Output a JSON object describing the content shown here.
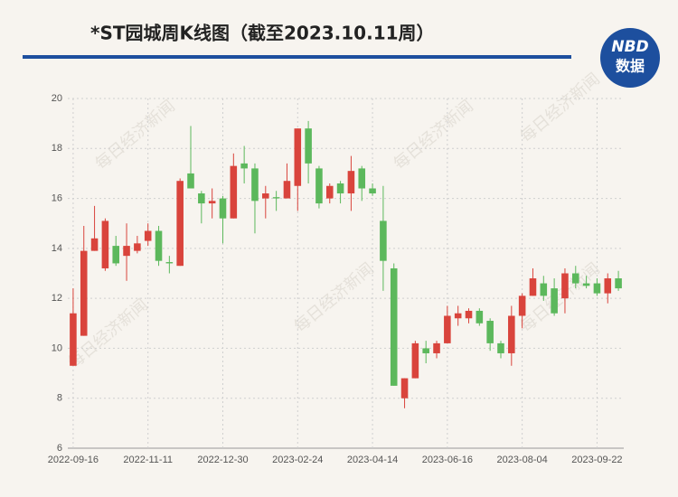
{
  "chart_data": {
    "type": "candlestick",
    "title": "*ST园城周K线图（截至2023.10.11周）",
    "watermark": "每日经济新闻",
    "categories": [
      "2022-09-16",
      null,
      null,
      null,
      null,
      null,
      null,
      "2022-11-11",
      null,
      null,
      null,
      null,
      null,
      null,
      "2022-12-30",
      null,
      null,
      null,
      null,
      null,
      null,
      "2023-02-24",
      null,
      null,
      null,
      null,
      null,
      null,
      "2023-04-14",
      null,
      null,
      null,
      null,
      null,
      null,
      "2023-06-16",
      null,
      null,
      null,
      null,
      null,
      null,
      "2023-08-04",
      null,
      null,
      null,
      null,
      null,
      null,
      "2023-09-22",
      null,
      null
    ],
    "series": {
      "up_color": "#d9443c",
      "down_color": "#5cb85c",
      "open": [
        9.3,
        10.5,
        13.9,
        13.2,
        14.1,
        13.7,
        13.9,
        14.3,
        14.7,
        13.45,
        13.3,
        17.0,
        16.2,
        15.8,
        16.0,
        15.2,
        17.4,
        17.2,
        16.0,
        16.05,
        16.0,
        16.5,
        18.8,
        17.2,
        16.0,
        16.6,
        16.2,
        17.2,
        16.4,
        15.1,
        13.2,
        8.0,
        8.8,
        10.0,
        9.8,
        10.2,
        11.2,
        11.2,
        11.5,
        11.1,
        10.2,
        9.8,
        11.3,
        12.1,
        12.6,
        12.4,
        12.0,
        13.0,
        12.6,
        12.6,
        12.2,
        12.8
      ],
      "high": [
        12.4,
        14.9,
        15.7,
        15.2,
        14.5,
        15.0,
        14.5,
        15.0,
        14.9,
        13.7,
        16.8,
        18.9,
        16.3,
        16.4,
        16.1,
        17.8,
        18.1,
        17.4,
        16.5,
        16.3,
        17.4,
        18.8,
        19.1,
        17.3,
        16.6,
        16.7,
        17.7,
        17.3,
        16.6,
        16.5,
        13.4,
        8.8,
        10.3,
        10.3,
        10.3,
        11.7,
        11.7,
        11.6,
        11.6,
        11.2,
        10.3,
        11.7,
        12.2,
        13.2,
        12.9,
        12.8,
        13.2,
        13.3,
        12.9,
        12.8,
        13.0,
        13.1
      ],
      "low": [
        9.3,
        10.5,
        13.9,
        13.1,
        13.3,
        12.7,
        13.8,
        14.1,
        13.3,
        13.0,
        13.3,
        16.4,
        15.0,
        15.2,
        14.2,
        15.2,
        16.6,
        14.6,
        15.2,
        15.5,
        16.0,
        15.5,
        16.6,
        15.6,
        15.8,
        15.8,
        15.5,
        15.9,
        16.1,
        12.3,
        8.5,
        7.6,
        8.8,
        9.4,
        9.6,
        10.2,
        10.9,
        11.0,
        10.9,
        9.9,
        9.6,
        9.3,
        10.8,
        12.1,
        11.9,
        11.3,
        11.4,
        12.4,
        12.4,
        12.1,
        11.8,
        12.3
      ],
      "close": [
        11.4,
        13.9,
        14.4,
        15.1,
        13.4,
        14.1,
        14.2,
        14.7,
        13.5,
        13.4,
        16.7,
        16.4,
        15.8,
        15.9,
        15.2,
        17.3,
        17.2,
        15.9,
        16.2,
        16.0,
        16.7,
        18.8,
        17.4,
        15.8,
        16.5,
        16.2,
        17.1,
        16.4,
        16.2,
        13.5,
        8.5,
        8.8,
        10.2,
        9.8,
        10.2,
        11.3,
        11.4,
        11.5,
        11.0,
        10.2,
        9.8,
        11.3,
        12.1,
        12.8,
        12.1,
        11.4,
        13.0,
        12.6,
        12.5,
        12.2,
        12.8,
        12.4
      ]
    },
    "ylim": [
      6,
      20
    ],
    "yticks": [
      6,
      8,
      10,
      12,
      14,
      16,
      18,
      20
    ],
    "grid": true
  },
  "logo": {
    "top": "NBD",
    "bottom": "数据"
  }
}
